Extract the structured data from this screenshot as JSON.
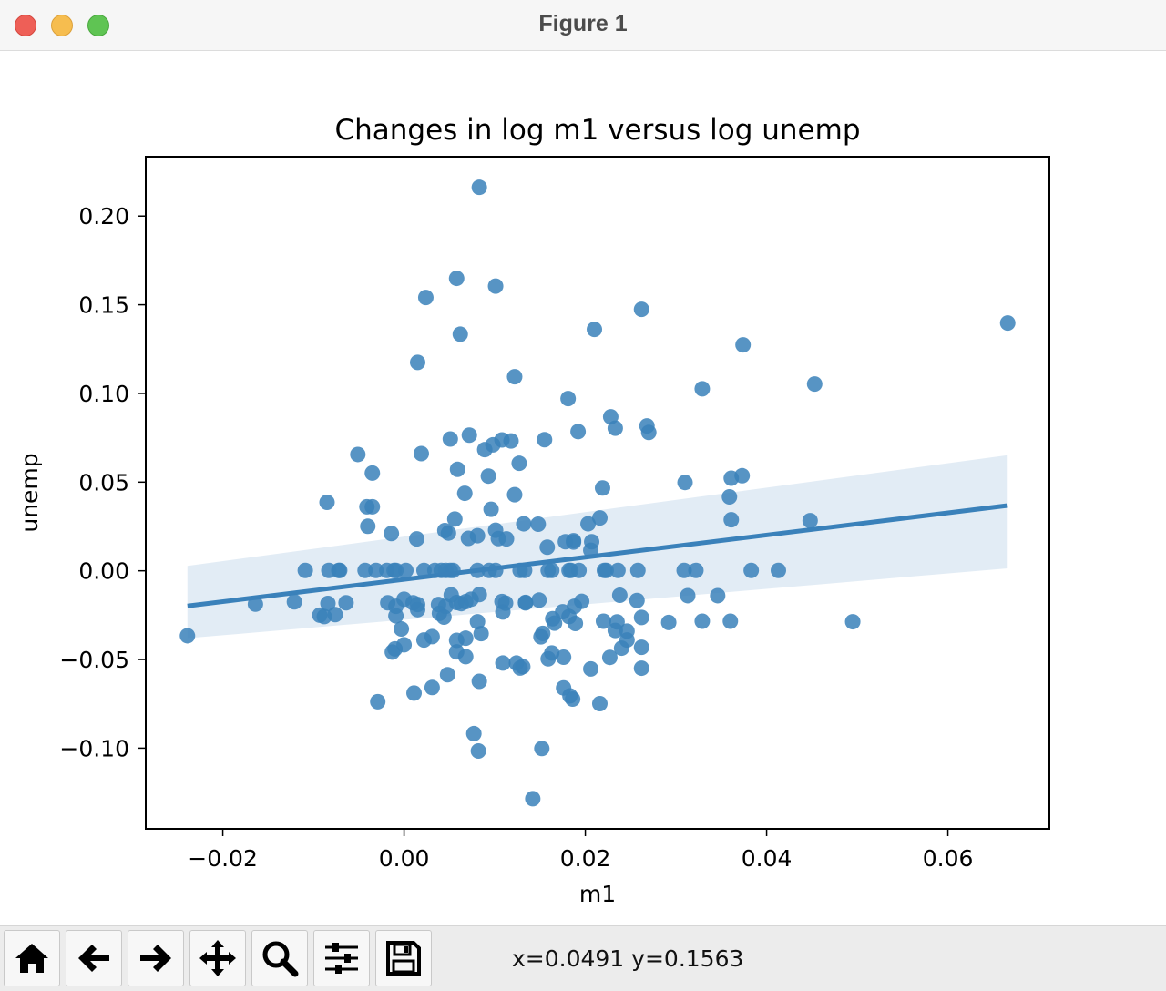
{
  "window": {
    "title": "Figure 1"
  },
  "toolbar": {
    "buttons": [
      {
        "name": "home-button",
        "icon": "home-icon"
      },
      {
        "name": "back-button",
        "icon": "arrow-left-icon"
      },
      {
        "name": "forward-button",
        "icon": "arrow-right-icon"
      },
      {
        "name": "pan-button",
        "icon": "move-icon"
      },
      {
        "name": "zoom-button",
        "icon": "zoom-icon"
      },
      {
        "name": "configure-subplots-button",
        "icon": "sliders-icon"
      },
      {
        "name": "save-button",
        "icon": "save-icon"
      }
    ],
    "coords": "x=0.0491 y=0.1563"
  },
  "chart_data": {
    "type": "scatter",
    "title": "Changes in log m1 versus log unemp",
    "xlabel": "m1",
    "ylabel": "unemp",
    "xlim": [
      -0.0285,
      0.0712
    ],
    "ylim": [
      -0.1455,
      0.2335
    ],
    "xticks": [
      -0.02,
      0.0,
      0.02,
      0.04,
      0.06
    ],
    "xtick_labels": [
      "−0.02",
      "0.00",
      "0.02",
      "0.04",
      "0.06"
    ],
    "yticks": [
      -0.1,
      -0.05,
      0.0,
      0.05,
      0.1,
      0.15,
      0.2
    ],
    "ytick_labels": [
      "−0.10",
      "−0.05",
      "0.00",
      "0.05",
      "0.10",
      "0.15",
      "0.20"
    ],
    "grid": false,
    "colors": {
      "point": "#3a81ba",
      "line": "#3a81ba",
      "band": "#3a81ba"
    },
    "points": [
      [
        0.0083,
        0.2162
      ],
      [
        0.0058,
        0.1649
      ],
      [
        0.0101,
        0.1605
      ],
      [
        0.0024,
        0.1541
      ],
      [
        0.0262,
        0.1474
      ],
      [
        0.0666,
        0.1397
      ],
      [
        0.021,
        0.1361
      ],
      [
        0.0062,
        0.1334
      ],
      [
        0.0374,
        0.1274
      ],
      [
        0.0015,
        0.1175
      ],
      [
        0.0122,
        0.1094
      ],
      [
        0.0453,
        0.1053
      ],
      [
        0.0329,
        0.1026
      ],
      [
        0.0181,
        0.0971
      ],
      [
        0.0228,
        0.0868
      ],
      [
        0.0268,
        0.0817
      ],
      [
        0.0233,
        0.0804
      ],
      [
        0.027,
        0.078
      ],
      [
        0.0192,
        0.0785
      ],
      [
        0.0072,
        0.0765
      ],
      [
        0.0051,
        0.0743
      ],
      [
        0.0108,
        0.0738
      ],
      [
        0.0155,
        0.0739
      ],
      [
        0.0118,
        0.0732
      ],
      [
        0.0098,
        0.071
      ],
      [
        0.0089,
        0.0683
      ],
      [
        0.0019,
        0.0661
      ],
      [
        -0.0051,
        0.0656
      ],
      [
        0.0127,
        0.0606
      ],
      [
        0.0059,
        0.0572
      ],
      [
        -0.0035,
        0.0551
      ],
      [
        0.0093,
        0.0534
      ],
      [
        0.031,
        0.0498
      ],
      [
        0.0361,
        0.0522
      ],
      [
        0.0373,
        0.0536
      ],
      [
        0.0219,
        0.0467
      ],
      [
        0.0067,
        0.0437
      ],
      [
        0.0122,
        0.0429
      ],
      [
        0.0359,
        0.0417
      ],
      [
        -0.0085,
        0.0386
      ],
      [
        -0.0041,
        0.0361
      ],
      [
        -0.0035,
        0.0361
      ],
      [
        0.0096,
        0.0347
      ],
      [
        0.0056,
        0.0292
      ],
      [
        0.0216,
        0.0298
      ],
      [
        0.0361,
        0.0288
      ],
      [
        0.0448,
        0.0283
      ],
      [
        0.0132,
        0.0265
      ],
      [
        0.0148,
        0.0263
      ],
      [
        0.0203,
        0.0265
      ],
      [
        0.0045,
        0.0227
      ],
      [
        0.0101,
        0.0229
      ],
      [
        -0.004,
        0.0251
      ],
      [
        -0.0014,
        0.021
      ],
      [
        0.0049,
        0.0213
      ],
      [
        0.0081,
        0.0198
      ],
      [
        0.0071,
        0.0183
      ],
      [
        0.0104,
        0.0182
      ],
      [
        0.0113,
        0.018
      ],
      [
        0.0014,
        0.018
      ],
      [
        0.0187,
        0.017
      ],
      [
        0.0178,
        0.0164
      ],
      [
        0.0187,
        0.0162
      ],
      [
        0.0207,
        0.0164
      ],
      [
        0.0158,
        0.0133
      ],
      [
        0.0206,
        0.0116
      ],
      [
        -0.0109,
        0.0002
      ],
      [
        -0.0083,
        0.0002
      ],
      [
        -0.0071,
        0.0002
      ],
      [
        -0.0072,
        0.0002
      ],
      [
        -0.0043,
        0.0002
      ],
      [
        -0.0031,
        0.0002
      ],
      [
        -0.0019,
        0.0002
      ],
      [
        -0.0011,
        0.0002
      ],
      [
        -0.0009,
        0.0002
      ],
      [
        0.0002,
        0.0002
      ],
      [
        0.0022,
        0.0002
      ],
      [
        0.0034,
        0.0002
      ],
      [
        0.0041,
        0.0002
      ],
      [
        0.0046,
        0.0002
      ],
      [
        0.0051,
        0.0002
      ],
      [
        0.0054,
        0.0002
      ],
      [
        0.0081,
        0.0002
      ],
      [
        0.0094,
        0.0002
      ],
      [
        0.0101,
        0.0002
      ],
      [
        0.0128,
        0.0002
      ],
      [
        0.0133,
        0.0002
      ],
      [
        0.0159,
        0.0002
      ],
      [
        0.0163,
        0.0002
      ],
      [
        0.0182,
        0.0002
      ],
      [
        0.0184,
        0.0002
      ],
      [
        0.0193,
        0.0002
      ],
      [
        0.0221,
        0.0002
      ],
      [
        0.0223,
        0.0002
      ],
      [
        0.0236,
        0.0002
      ],
      [
        0.0258,
        0.0002
      ],
      [
        0.0309,
        0.0002
      ],
      [
        0.0322,
        0.0002
      ],
      [
        0.0383,
        0.0002
      ],
      [
        0.0413,
        0.0002
      ],
      [
        -0.0164,
        -0.0188
      ],
      [
        -0.0121,
        -0.0175
      ],
      [
        -0.0093,
        -0.025
      ],
      [
        -0.0088,
        -0.0258
      ],
      [
        -0.0084,
        -0.0184
      ],
      [
        -0.0076,
        -0.0247
      ],
      [
        -0.0064,
        -0.018
      ],
      [
        -0.0018,
        -0.018
      ],
      [
        -0.0009,
        -0.02
      ],
      [
        0.0,
        -0.016
      ],
      [
        0.001,
        -0.018
      ],
      [
        0.0015,
        -0.019
      ],
      [
        0.0015,
        -0.0219
      ],
      [
        -0.0009,
        -0.0254
      ],
      [
        -0.0003,
        -0.0328
      ],
      [
        0.0038,
        -0.019
      ],
      [
        0.0039,
        -0.024
      ],
      [
        0.0044,
        -0.0261
      ],
      [
        0.0046,
        -0.02
      ],
      [
        0.0052,
        -0.0136
      ],
      [
        0.0058,
        -0.0179
      ],
      [
        0.0063,
        -0.0185
      ],
      [
        0.0068,
        -0.0174
      ],
      [
        0.0074,
        -0.016
      ],
      [
        0.0083,
        -0.0134
      ],
      [
        0.0081,
        -0.0287
      ],
      [
        0.0085,
        -0.0354
      ],
      [
        0.0108,
        -0.0173
      ],
      [
        0.0109,
        -0.0232
      ],
      [
        0.0112,
        -0.0182
      ],
      [
        0.0134,
        -0.0181
      ],
      [
        0.0134,
        -0.0178
      ],
      [
        0.0149,
        -0.0165
      ],
      [
        0.0164,
        -0.027
      ],
      [
        0.0166,
        -0.0295
      ],
      [
        0.0175,
        -0.0231
      ],
      [
        0.0188,
        -0.02
      ],
      [
        0.0196,
        -0.0172
      ],
      [
        0.0182,
        -0.0258
      ],
      [
        0.0189,
        -0.0297
      ],
      [
        0.022,
        -0.0284
      ],
      [
        0.0235,
        -0.0288
      ],
      [
        0.0238,
        -0.0138
      ],
      [
        0.0233,
        -0.0336
      ],
      [
        0.0246,
        -0.034
      ],
      [
        0.0257,
        -0.0167
      ],
      [
        0.0262,
        -0.0263
      ],
      [
        0.0292,
        -0.0291
      ],
      [
        0.0313,
        -0.014
      ],
      [
        0.0329,
        -0.0284
      ],
      [
        0.0346,
        -0.014
      ],
      [
        0.036,
        -0.0284
      ],
      [
        0.0495,
        -0.0287
      ],
      [
        -0.0239,
        -0.0366
      ],
      [
        -0.001,
        -0.044
      ],
      [
        -0.0013,
        -0.0458
      ],
      [
        0.0,
        -0.0417
      ],
      [
        0.0022,
        -0.039
      ],
      [
        0.0031,
        -0.0371
      ],
      [
        0.0058,
        -0.0392
      ],
      [
        0.0068,
        -0.038
      ],
      [
        0.0058,
        -0.0457
      ],
      [
        0.0068,
        -0.0484
      ],
      [
        0.0048,
        -0.0586
      ],
      [
        0.0083,
        -0.0623
      ],
      [
        0.0109,
        -0.052
      ],
      [
        0.0124,
        -0.052
      ],
      [
        0.0128,
        -0.0548
      ],
      [
        0.0131,
        -0.054
      ],
      [
        0.0151,
        -0.0372
      ],
      [
        0.0153,
        -0.0353
      ],
      [
        0.0159,
        -0.0496
      ],
      [
        0.0163,
        -0.0463
      ],
      [
        0.0176,
        -0.0487
      ],
      [
        0.0206,
        -0.0553
      ],
      [
        0.0227,
        -0.0488
      ],
      [
        0.024,
        -0.0436
      ],
      [
        0.0246,
        -0.039
      ],
      [
        0.0262,
        -0.0431
      ],
      [
        0.0262,
        -0.0549
      ],
      [
        -0.0029,
        -0.0738
      ],
      [
        0.0011,
        -0.0689
      ],
      [
        0.0031,
        -0.0658
      ],
      [
        0.0176,
        -0.066
      ],
      [
        0.0183,
        -0.0705
      ],
      [
        0.0186,
        -0.0723
      ],
      [
        0.0216,
        -0.0749
      ],
      [
        0.0077,
        -0.0918
      ],
      [
        0.0082,
        -0.1016
      ],
      [
        0.0152,
        -0.1002
      ],
      [
        0.0142,
        -0.1285
      ]
    ],
    "regression": {
      "x": [
        -0.0239,
        0.0666
      ],
      "y": [
        -0.0198,
        0.0368
      ],
      "ci_upper": [
        0.0028,
        0.0652
      ],
      "ci_lower": [
        -0.038,
        0.0014
      ]
    }
  }
}
